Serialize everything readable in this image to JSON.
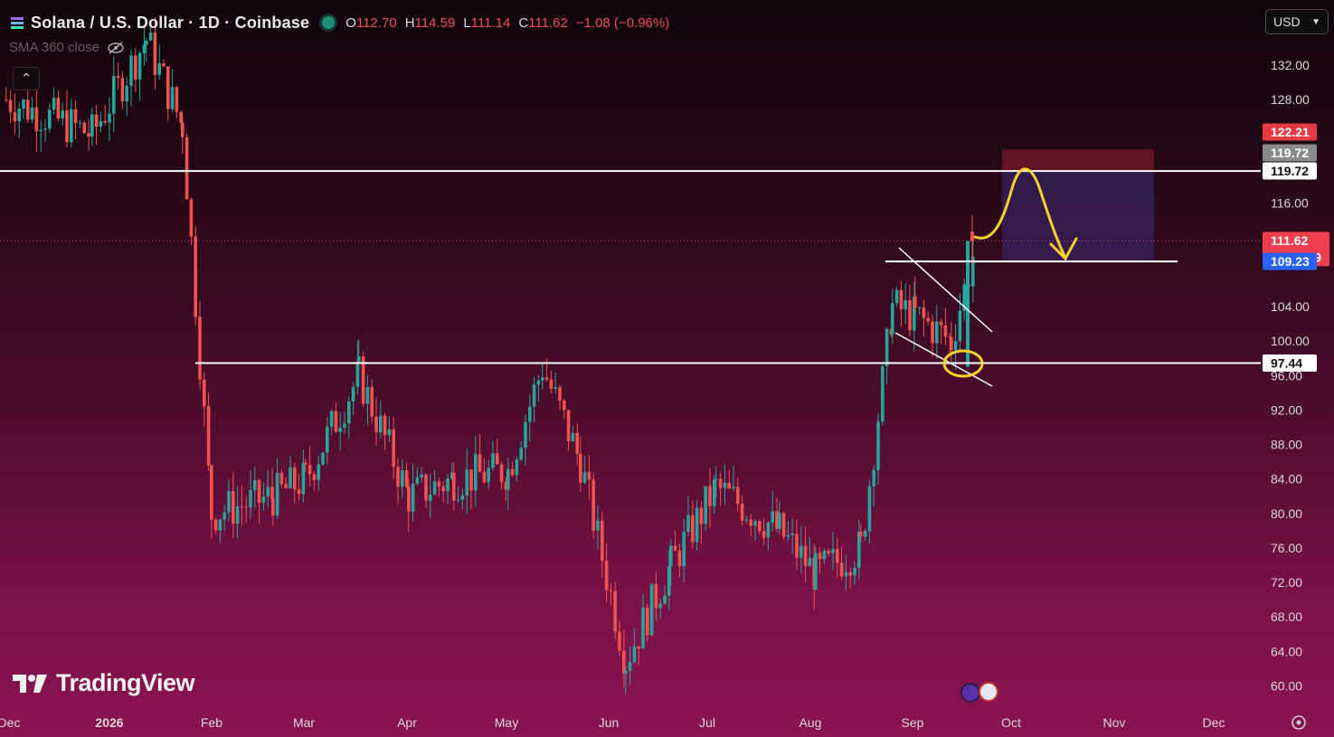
{
  "header": {
    "title": "Solana / U.S. Dollar · 1D · Coinbase",
    "open_label": "O",
    "open": "112.70",
    "high_label": "H",
    "high": "114.59",
    "low_label": "L",
    "low": "111.14",
    "close_label": "C",
    "close": "111.62",
    "change": "−1.08 (−0.96%)"
  },
  "indicator": {
    "label": "SMA 360 close"
  },
  "currency": {
    "label": "USD"
  },
  "brand": {
    "name": "TradingView"
  },
  "colors": {
    "up": "#26a69a",
    "down": "#ef5350",
    "line": "#ffffff",
    "highlight": "#f6d22b"
  },
  "chart_data": {
    "type": "candlestick",
    "price_axis": [
      "132.00",
      "128.00",
      "116.00",
      "104.00",
      "100.00",
      "96.00",
      "92.00",
      "88.00",
      "84.00",
      "80.00",
      "76.00",
      "72.00",
      "68.00",
      "64.00",
      "60.00"
    ],
    "time_axis": [
      "Dec",
      "2026",
      "Feb",
      "Mar",
      "Apr",
      "May",
      "Jun",
      "Jul",
      "Aug",
      "Sep",
      "Oct",
      "Nov",
      "Dec"
    ],
    "ylim": [
      58,
      137
    ],
    "price_tags": [
      {
        "value": "122.21",
        "kind": "target-red"
      },
      {
        "value": "119.72",
        "kind": "grey"
      },
      {
        "value": "119.72",
        "kind": "white-level"
      },
      {
        "value": "111.62",
        "kind": "last-price",
        "countdown": "16:20:59"
      },
      {
        "value": "109.23",
        "kind": "entry-blue"
      },
      {
        "value": "97.44",
        "kind": "white-level"
      }
    ],
    "horizontal_levels": [
      119.72,
      109.23,
      97.44
    ],
    "trade_box": {
      "stop": 122.21,
      "entry": 119.72,
      "target": 109.23
    },
    "candles_close_path": [
      [
        "Dec",
        128
      ],
      [
        "2026",
        124
      ],
      [
        "Jan-mid",
        135
      ],
      [
        "Jan-end",
        125
      ],
      [
        "Feb",
        80
      ],
      [
        "Feb-mid",
        82
      ],
      [
        "Mar",
        84
      ],
      [
        "Mar-mid",
        96
      ],
      [
        "Apr",
        82
      ],
      [
        "Apr-mid",
        84
      ],
      [
        "May",
        85
      ],
      [
        "May-mid",
        97
      ],
      [
        "May-end",
        86
      ],
      [
        "Jun",
        63
      ],
      [
        "Jun-mid",
        74
      ],
      [
        "Jul",
        83
      ],
      [
        "Jul-mid",
        78
      ],
      [
        "Aug",
        73
      ],
      [
        "Aug-mid",
        76
      ],
      [
        "Aug-end",
        104
      ],
      [
        "Sep",
        103
      ],
      [
        "Sep-mid",
        100
      ],
      [
        "Sep-end",
        111.62
      ]
    ]
  }
}
